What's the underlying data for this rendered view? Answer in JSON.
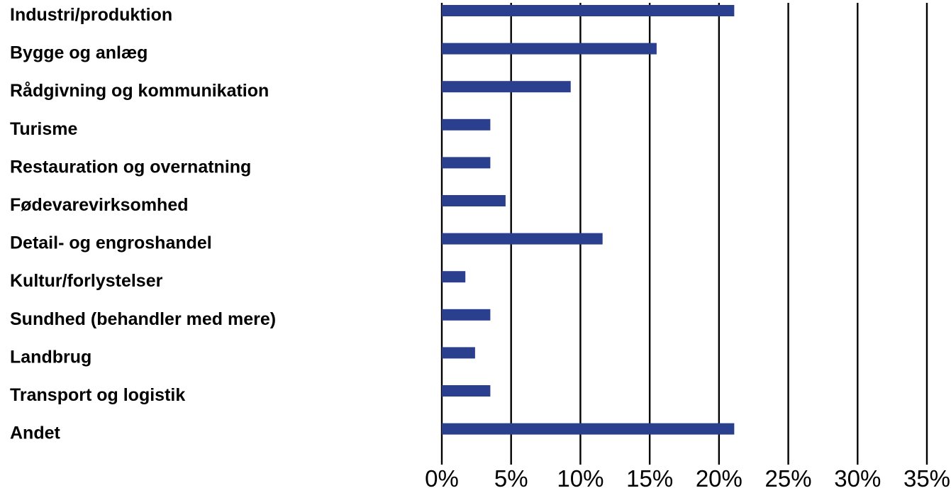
{
  "chart_data": {
    "type": "bar",
    "orientation": "horizontal",
    "categories": [
      "Industri/produktion",
      "Bygge og anlæg",
      "Rådgivning og kommunikation",
      "Turisme",
      "Restauration og overnatning",
      "Fødevarevirksomhed",
      "Detail- og engroshandel",
      "Kultur/forlystelser",
      "Sundhed (behandler med mere)",
      "Landbrug",
      "Transport og logistik",
      "Andet"
    ],
    "values": [
      21.1,
      15.5,
      9.3,
      3.5,
      3.5,
      4.6,
      11.6,
      1.7,
      3.5,
      2.4,
      3.5,
      21.1
    ],
    "xlim": [
      0,
      35
    ],
    "ticks": [
      0,
      5,
      10,
      15,
      20,
      25,
      30,
      35
    ],
    "tick_labels": [
      "0%",
      "5%",
      "10%",
      "15%",
      "20%",
      "25%",
      "30%",
      "35%"
    ],
    "grid": true,
    "bar_color": "#2b3f8f",
    "title": "",
    "xlabel": "",
    "ylabel": ""
  }
}
